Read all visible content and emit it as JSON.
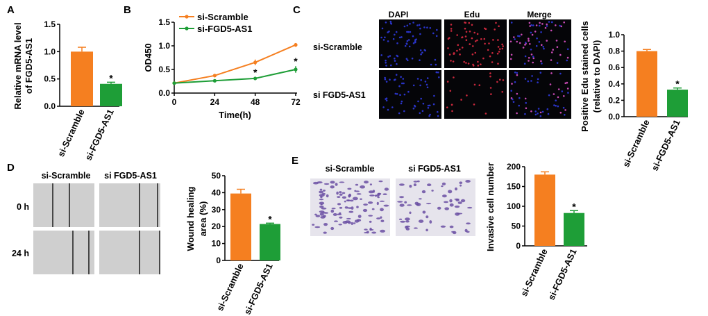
{
  "colors": {
    "scramble": "#F57F20",
    "fgd5": "#1E9E37",
    "axis": "#000000",
    "dapi": "#2a34c8",
    "edu": "#c8283c",
    "crystal": "#6a4fa3"
  },
  "panels": {
    "A": {
      "letter": "A"
    },
    "B": {
      "letter": "B"
    },
    "C": {
      "letter": "C",
      "image_cols": [
        "DAPI",
        "Edu",
        "Merge"
      ],
      "image_rows": [
        "si-Scramble",
        "si FGD5-AS1"
      ]
    },
    "D": {
      "letter": "D",
      "image_cols": [
        "si-Scramble",
        "si FGD5-AS1"
      ],
      "image_rows": [
        "0 h",
        "24 h"
      ]
    },
    "E": {
      "letter": "E",
      "image_cols": [
        "si-Scramble",
        "si FGD5-AS1"
      ]
    }
  },
  "chart_data": [
    {
      "id": "A",
      "type": "bar",
      "categories": [
        "si-Scramble",
        "si-FGD5-AS1"
      ],
      "values": [
        1.0,
        0.41
      ],
      "errors": [
        0.08,
        0.03
      ],
      "ylabel_lines": [
        "Relative mRNA level",
        "of FGD5-AS1"
      ],
      "ylim": [
        0,
        1.5
      ],
      "yticks": [
        "0.0",
        "0.5",
        "1.0",
        "1.5"
      ],
      "annotations": [
        "",
        "*"
      ]
    },
    {
      "id": "B",
      "type": "line",
      "x": [
        0,
        24,
        48,
        72
      ],
      "xticks": [
        "0",
        "24",
        "48",
        "72"
      ],
      "xlabel": "Time(h)",
      "ylabel": "OD450",
      "ylim": [
        0,
        1.5
      ],
      "yticks": [
        "0.0",
        "0.5",
        "1.0",
        "1.5"
      ],
      "series": [
        {
          "name": "si-Scramble",
          "values": [
            0.21,
            0.37,
            0.65,
            1.02
          ],
          "errors": [
            0,
            0.02,
            0.06,
            0.04
          ]
        },
        {
          "name": "si-FGD5-AS1",
          "values": [
            0.21,
            0.26,
            0.31,
            0.5
          ],
          "errors": [
            0,
            0.02,
            0.03,
            0.07
          ]
        }
      ],
      "annotations": [
        {
          "x": 48,
          "text": "*"
        },
        {
          "x": 72,
          "text": "*"
        }
      ],
      "legend": "top-left"
    },
    {
      "id": "C",
      "type": "bar",
      "categories": [
        "si-Scramble",
        "si-FGD5-AS1"
      ],
      "values": [
        0.8,
        0.33
      ],
      "errors": [
        0.02,
        0.02
      ],
      "ylabel_lines": [
        "Positive Edu stained cells",
        "(relative to DAPI)"
      ],
      "ylim": [
        0,
        1.0
      ],
      "yticks": [
        "0.0",
        "0.2",
        "0.4",
        "0.6",
        "0.8",
        "1.0"
      ],
      "annotations": [
        "",
        "*"
      ]
    },
    {
      "id": "D",
      "type": "bar",
      "categories": [
        "si-Scramble",
        "si-FGD5-AS1"
      ],
      "values": [
        39.5,
        21.5
      ],
      "errors": [
        2.5,
        0.5
      ],
      "ylabel_lines": [
        "Wound healing",
        "area (%)"
      ],
      "ylim": [
        0,
        50
      ],
      "yticks": [
        "0",
        "10",
        "20",
        "30",
        "40",
        "50"
      ],
      "annotations": [
        "",
        "*"
      ]
    },
    {
      "id": "E",
      "type": "bar",
      "categories": [
        "si-Scramble",
        "si-FGD5-AS1"
      ],
      "values": [
        180,
        83
      ],
      "errors": [
        7,
        6
      ],
      "ylabel_lines": [
        "Invasive cell number"
      ],
      "ylim": [
        0,
        200
      ],
      "yticks": [
        "0",
        "50",
        "100",
        "150",
        "200"
      ],
      "annotations": [
        "",
        "*"
      ]
    }
  ]
}
